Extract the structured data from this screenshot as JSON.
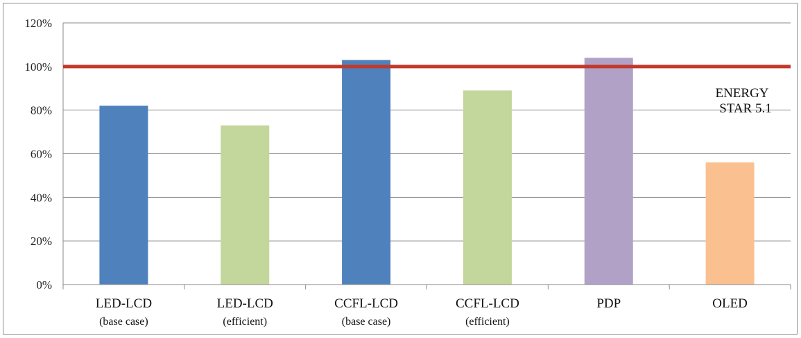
{
  "chart_data": {
    "type": "bar",
    "categories": [
      {
        "line1": "LED-LCD",
        "line2": "(base case)"
      },
      {
        "line1": "LED-LCD",
        "line2": "(efficient)"
      },
      {
        "line1": "CCFL-LCD",
        "line2": "(base case)"
      },
      {
        "line1": "CCFL-LCD",
        "line2": "(efficient)"
      },
      {
        "line1": "PDP",
        "line2": ""
      },
      {
        "line1": "OLED",
        "line2": ""
      }
    ],
    "values": [
      82,
      73,
      103,
      89,
      104,
      56
    ],
    "bar_colors": [
      "#4f81bd",
      "#c3d69b",
      "#4f81bd",
      "#c3d69b",
      "#b2a1c7",
      "#fac090"
    ],
    "ylim": [
      0,
      120
    ],
    "yticks": [
      0,
      20,
      40,
      60,
      80,
      100,
      120
    ],
    "ytick_labels": [
      "0%",
      "20%",
      "40%",
      "60%",
      "80%",
      "100%",
      "120%"
    ],
    "reference_line": {
      "value": 100,
      "color": "#c0392b",
      "label_lines": [
        "ENERGY",
        "STAR 5.1"
      ]
    },
    "title": "",
    "xlabel": "",
    "ylabel": "",
    "grid": true,
    "legend": "none"
  }
}
